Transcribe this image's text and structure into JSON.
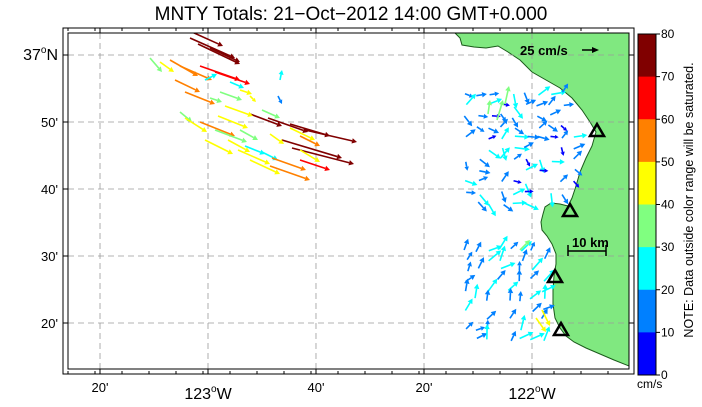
{
  "title": "MNTY Totals: 21−Oct−2012 14:00 GMT+0.000",
  "map": {
    "lat_labels": [
      {
        "text": "37",
        "deg": true,
        "hem": "N",
        "lat": 37.0
      },
      {
        "text": "50'",
        "lat": 36.8333
      },
      {
        "text": "40'",
        "lat": 36.6667
      },
      {
        "text": "30'",
        "lat": 36.5
      },
      {
        "text": "20'",
        "lat": 36.3333
      }
    ],
    "lon_labels": [
      {
        "text": "20'",
        "lon": -123.3333
      },
      {
        "text": "123",
        "deg": true,
        "hem": "W",
        "lon": -123.0
      },
      {
        "text": "40'",
        "lon": -122.6667
      },
      {
        "text": "20'",
        "lon": -122.3333
      },
      {
        "text": "122",
        "deg": true,
        "hem": "W",
        "lon": -122.0
      }
    ],
    "scale_vector_label": "25 cm/s",
    "scale_bar_label": "10 km",
    "land_color": "#80e880",
    "grid_color": "#9a9a9a",
    "sites": [
      "site-1",
      "site-2",
      "site-3",
      "site-4"
    ]
  },
  "colorbar": {
    "ticks": [
      "80",
      "70",
      "60",
      "50",
      "40",
      "30",
      "20",
      "10",
      "0"
    ],
    "unit": "cm/s",
    "note": "NOTE: Data outside color range will be saturated.",
    "colors": [
      "#800000",
      "#ff0000",
      "#ff8000",
      "#ffff00",
      "#80ff80",
      "#00ffff",
      "#0080ff",
      "#0000ff"
    ]
  }
}
